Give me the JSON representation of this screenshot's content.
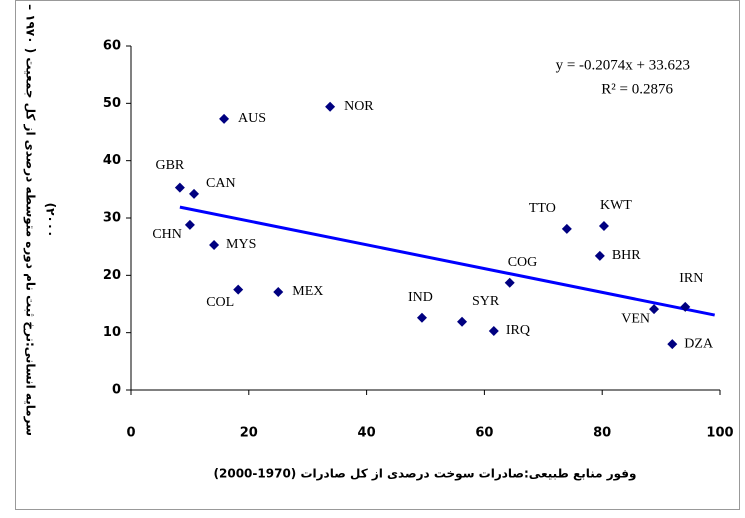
{
  "chart_data": {
    "type": "scatter",
    "x_label": "وفور منابع طبیعی:صادرات سوخت درصدی از کل صادرات (1970-2000)",
    "y_label": [
      "سرمایه انسانی:نرخ ثبت نام دوره متوسطه درصدی از کل جمعیت ( ۱۹۷۰ –",
      "۲۰۰۰)"
    ],
    "series": [
      {
        "color": "#000080",
        "labels": [
          "GBR",
          "CAN",
          "CHN",
          "MYS",
          "COL",
          "MEX",
          "AUS",
          "NOR",
          "IND",
          "SYR",
          "IRQ",
          "COG",
          "TTO",
          "KWT",
          "BHR",
          "VEN",
          "IRN",
          "DZA"
        ],
        "label_colors": [
          "#000000",
          "#000000",
          "#000000",
          "#000000",
          "#000000",
          "#000000",
          "#000000",
          "#000000",
          "#000000",
          "#000000",
          "#000000",
          "#000000",
          "#000000",
          "#000000",
          "#000000",
          "#000000",
          "#ff0000",
          "#000000"
        ],
        "x": [
          8.3,
          10.7,
          10.0,
          14.1,
          18.2,
          25.0,
          15.8,
          33.8,
          49.4,
          56.2,
          61.6,
          64.3,
          74.0,
          80.3,
          79.6,
          88.8,
          94.1,
          91.9
        ],
        "values": [
          35.3,
          34.2,
          28.8,
          25.3,
          17.5,
          17.1,
          47.3,
          49.4,
          12.6,
          11.9,
          10.3,
          18.7,
          28.1,
          28.6,
          23.4,
          14.1,
          14.5,
          8.0
        ]
      }
    ],
    "trendline": {
      "color": "#0000ff",
      "slope": -0.2074,
      "intercept": 33.623,
      "equation": "y = -0.2074x + 33.623",
      "r_squared_label": "R² = 0.2876"
    },
    "xlim": [
      0,
      100
    ],
    "xticks": [
      0,
      20,
      40,
      60,
      80,
      100
    ],
    "ylim": [
      0,
      60
    ],
    "yticks": [
      0,
      10,
      20,
      30,
      40,
      50,
      60
    ]
  }
}
